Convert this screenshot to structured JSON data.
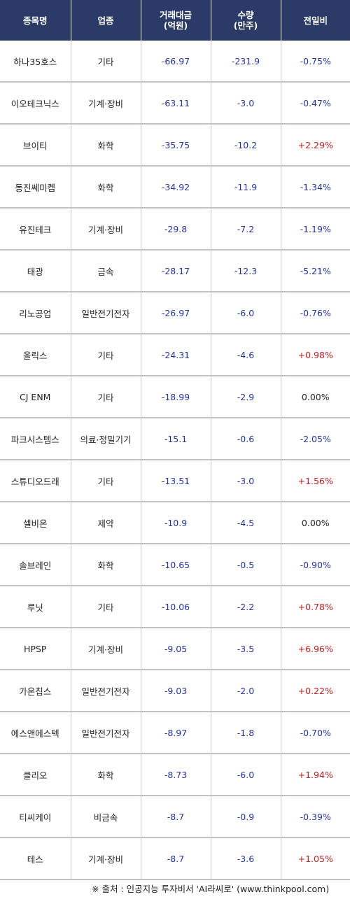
{
  "colors": {
    "header_bg": "#2b3a67",
    "negative": "#2233aa",
    "positive": "#d11a1a",
    "neutral": "#222222"
  },
  "headers": {
    "name": "종목명",
    "sector": "업종",
    "amount_line1": "거래대금",
    "amount_line2": "(억원)",
    "volume_line1": "수량",
    "volume_line2": "(만주)",
    "change": "전일비"
  },
  "rows": [
    {
      "name": "하나35호스",
      "sector": "기타",
      "amount": "-66.97",
      "volume": "-231.9",
      "change": "-0.75%",
      "dir": "neg"
    },
    {
      "name": "이오테크닉스",
      "sector": "기계·장비",
      "amount": "-63.11",
      "volume": "-3.0",
      "change": "-0.47%",
      "dir": "neg"
    },
    {
      "name": "브이티",
      "sector": "화학",
      "amount": "-35.75",
      "volume": "-10.2",
      "change": "+2.29%",
      "dir": "pos"
    },
    {
      "name": "동진쎄미켐",
      "sector": "화학",
      "amount": "-34.92",
      "volume": "-11.9",
      "change": "-1.34%",
      "dir": "neg"
    },
    {
      "name": "유진테크",
      "sector": "기계·장비",
      "amount": "-29.8",
      "volume": "-7.2",
      "change": "-1.19%",
      "dir": "neg"
    },
    {
      "name": "태광",
      "sector": "금속",
      "amount": "-28.17",
      "volume": "-12.3",
      "change": "-5.21%",
      "dir": "neg"
    },
    {
      "name": "리노공업",
      "sector": "일반전기전자",
      "amount": "-26.97",
      "volume": "-6.0",
      "change": "-0.76%",
      "dir": "neg"
    },
    {
      "name": "올릭스",
      "sector": "기타",
      "amount": "-24.31",
      "volume": "-4.6",
      "change": "+0.98%",
      "dir": "pos"
    },
    {
      "name": "CJ ENM",
      "sector": "기타",
      "amount": "-18.99",
      "volume": "-2.9",
      "change": "0.00%",
      "dir": "zero"
    },
    {
      "name": "파크시스템스",
      "sector": "의료·정밀기기",
      "amount": "-15.1",
      "volume": "-0.6",
      "change": "-2.05%",
      "dir": "neg"
    },
    {
      "name": "스튜디오드래",
      "sector": "기타",
      "amount": "-13.51",
      "volume": "-3.0",
      "change": "+1.56%",
      "dir": "pos"
    },
    {
      "name": "셀비온",
      "sector": "제약",
      "amount": "-10.9",
      "volume": "-4.5",
      "change": "0.00%",
      "dir": "zero"
    },
    {
      "name": "솔브레인",
      "sector": "화학",
      "amount": "-10.65",
      "volume": "-0.5",
      "change": "-0.90%",
      "dir": "neg"
    },
    {
      "name": "루닛",
      "sector": "기타",
      "amount": "-10.06",
      "volume": "-2.2",
      "change": "+0.78%",
      "dir": "pos"
    },
    {
      "name": "HPSP",
      "sector": "기계·장비",
      "amount": "-9.05",
      "volume": "-3.5",
      "change": "+6.96%",
      "dir": "pos"
    },
    {
      "name": "가온칩스",
      "sector": "일반전기전자",
      "amount": "-9.03",
      "volume": "-2.0",
      "change": "+0.22%",
      "dir": "pos"
    },
    {
      "name": "에스앤에스텍",
      "sector": "일반전기전자",
      "amount": "-8.97",
      "volume": "-1.8",
      "change": "-0.70%",
      "dir": "neg"
    },
    {
      "name": "클리오",
      "sector": "화학",
      "amount": "-8.73",
      "volume": "-6.0",
      "change": "+1.94%",
      "dir": "pos"
    },
    {
      "name": "티씨케이",
      "sector": "비금속",
      "amount": "-8.7",
      "volume": "-0.9",
      "change": "-0.39%",
      "dir": "neg"
    },
    {
      "name": "테스",
      "sector": "기계·장비",
      "amount": "-8.7",
      "volume": "-3.6",
      "change": "+1.05%",
      "dir": "pos"
    }
  ],
  "footer": {
    "source": "※ 출처 : 인공지능 투자비서 'AI라씨로' (www.thinkpool.com)"
  }
}
